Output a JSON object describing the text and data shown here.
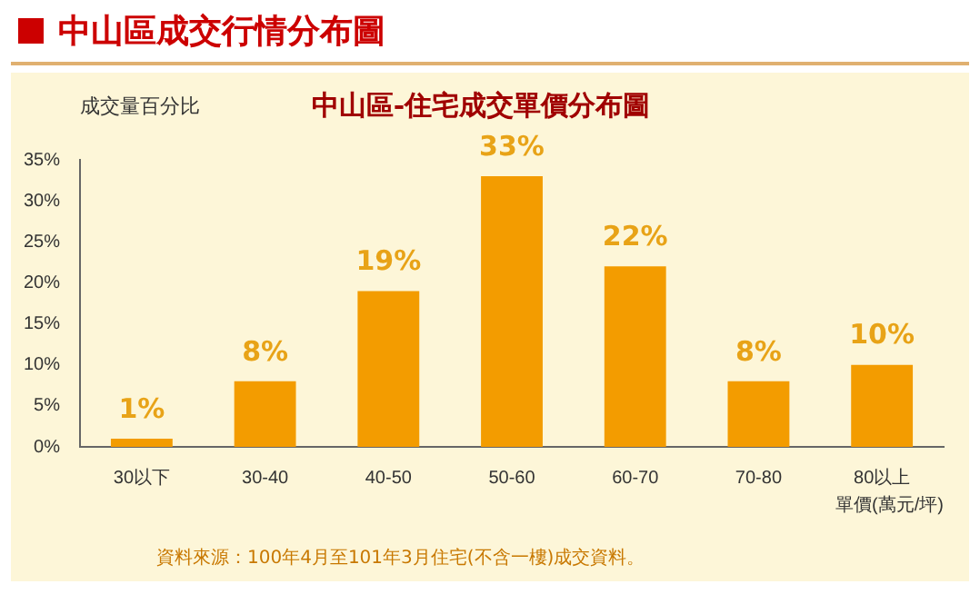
{
  "chart_data": {
    "type": "bar",
    "title": "中山區成交行情分布圖",
    "subtitle": "中山區-住宅成交單價分布圖",
    "ylabel": "成交量百分比",
    "xlabel": "單價(萬元/坪)",
    "categories": [
      "30以下",
      "30-40",
      "40-50",
      "50-60",
      "60-70",
      "70-80",
      "80以上"
    ],
    "values": [
      1,
      8,
      19,
      33,
      22,
      8,
      10
    ],
    "value_labels": [
      "1%",
      "8%",
      "19%",
      "33%",
      "22%",
      "8%",
      "10%"
    ],
    "color": "#f39c00",
    "ylim": [
      0,
      35
    ],
    "yticks": [
      {
        "value": 0,
        "label": "0%"
      },
      {
        "value": 5,
        "label": "5%"
      },
      {
        "value": 10,
        "label": "10%"
      },
      {
        "value": 15,
        "label": "15%"
      },
      {
        "value": 20,
        "label": "20%"
      },
      {
        "value": 25,
        "label": "25%"
      },
      {
        "value": 30,
        "label": "30%"
      },
      {
        "value": 35,
        "label": "35%"
      }
    ],
    "legend": false,
    "annotations": [
      "資料來源：100年4月至101年3月住宅(不含一樓)成交資料。"
    ]
  }
}
